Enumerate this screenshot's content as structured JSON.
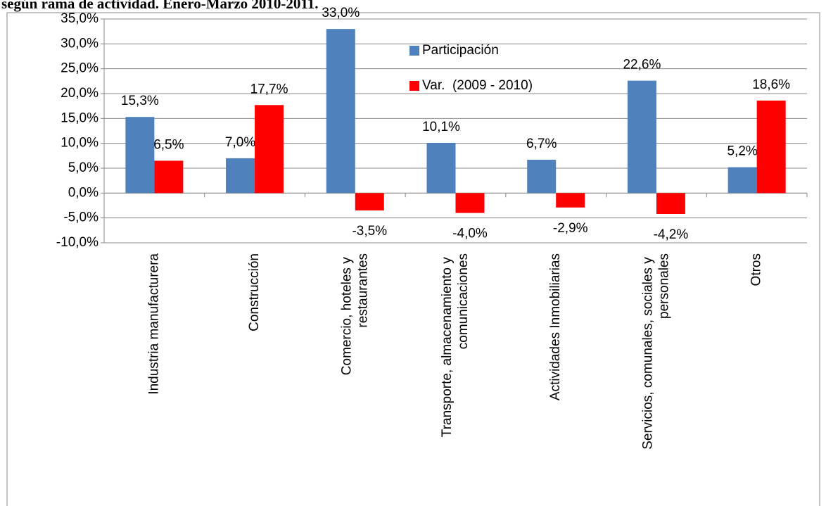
{
  "chart_data": {
    "type": "bar",
    "title": "según rama de actividad. Enero-Marzo 2010-2011.",
    "categories": [
      "Industria manufacturera",
      "Construcción",
      "Comercio, hoteles y restaurantes",
      "Transporte, almacenamiento y comunicaciones",
      "Actividades Inmobiliarias",
      "Servicios, comunales, sociales y personales",
      "Otros"
    ],
    "series": [
      {
        "name": "Participación",
        "color": "#4f81bd",
        "values": [
          15.3,
          7.0,
          33.0,
          10.1,
          6.7,
          22.6,
          5.2
        ],
        "value_labels": [
          "15,3%",
          "7,0%",
          "33,0%",
          "10,1%",
          "6,7%",
          "22,6%",
          "5,2%"
        ]
      },
      {
        "name": "Var.  (2009 - 2010)",
        "color": "#ff0000",
        "values": [
          6.5,
          17.7,
          -3.5,
          -4.0,
          -2.9,
          -4.2,
          18.6
        ],
        "value_labels": [
          "6,5%",
          "17,7%",
          "-3,5%",
          "-4,0%",
          "-2,9%",
          "-4,2%",
          "18,6%"
        ]
      }
    ],
    "ylim": [
      -10,
      35
    ],
    "yticks": [
      {
        "value": -10,
        "label": "-10,0%"
      },
      {
        "value": -5,
        "label": "-5,0%"
      },
      {
        "value": 0,
        "label": "0,0%"
      },
      {
        "value": 5,
        "label": "5,0%"
      },
      {
        "value": 10,
        "label": "10,0%"
      },
      {
        "value": 15,
        "label": "15,0%"
      },
      {
        "value": 20,
        "label": "20,0%"
      },
      {
        "value": 25,
        "label": "25,0%"
      },
      {
        "value": 30,
        "label": "30,0%"
      },
      {
        "value": 35,
        "label": "35,0%"
      }
    ],
    "grid": true
  }
}
